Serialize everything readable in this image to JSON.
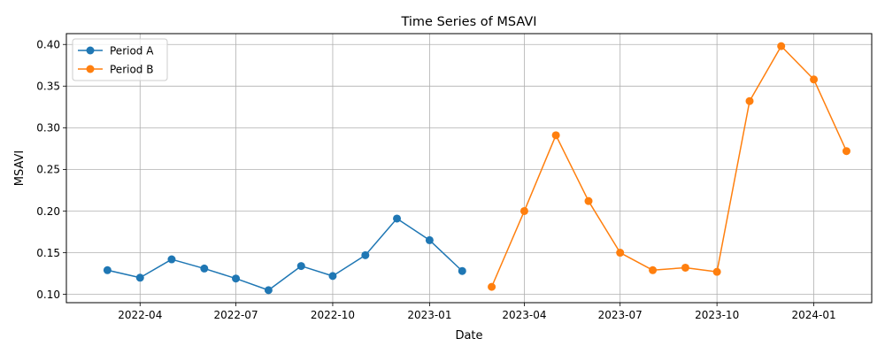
{
  "chart_data": {
    "type": "line",
    "title": "Time Series of MSAVI",
    "xlabel": "Date",
    "ylabel": "MSAVI",
    "grid": true,
    "legend_position": "top-left",
    "xlim": [
      "2022-01-21",
      "2024-02-25"
    ],
    "ylim": [
      0.09,
      0.413
    ],
    "x_ticks": [
      {
        "date": "2022-04-01",
        "label": "2022-04"
      },
      {
        "date": "2022-07-01",
        "label": "2022-07"
      },
      {
        "date": "2022-10-01",
        "label": "2022-10"
      },
      {
        "date": "2023-01-01",
        "label": "2023-01"
      },
      {
        "date": "2023-04-01",
        "label": "2023-04"
      },
      {
        "date": "2023-07-01",
        "label": "2023-07"
      },
      {
        "date": "2023-10-01",
        "label": "2023-10"
      },
      {
        "date": "2024-01-01",
        "label": "2024-01"
      }
    ],
    "y_ticks": [
      {
        "value": 0.1,
        "label": "0.10"
      },
      {
        "value": 0.15,
        "label": "0.15"
      },
      {
        "value": 0.2,
        "label": "0.20"
      },
      {
        "value": 0.25,
        "label": "0.25"
      },
      {
        "value": 0.3,
        "label": "0.30"
      },
      {
        "value": 0.35,
        "label": "0.35"
      },
      {
        "value": 0.4,
        "label": "0.40"
      }
    ],
    "series": [
      {
        "name": "Period A",
        "color": "#1f77b4",
        "x": [
          "2022-03-01",
          "2022-04-01",
          "2022-05-01",
          "2022-06-01",
          "2022-07-01",
          "2022-08-01",
          "2022-09-01",
          "2022-10-01",
          "2022-11-01",
          "2022-12-01",
          "2023-01-01",
          "2023-02-01"
        ],
        "y": [
          0.129,
          0.12,
          0.142,
          0.131,
          0.119,
          0.105,
          0.134,
          0.122,
          0.147,
          0.191,
          0.165,
          0.128
        ]
      },
      {
        "name": "Period B",
        "color": "#ff7f0e",
        "x": [
          "2023-03-01",
          "2023-04-01",
          "2023-05-01",
          "2023-06-01",
          "2023-07-01",
          "2023-08-01",
          "2023-09-01",
          "2023-10-01",
          "2023-11-01",
          "2023-12-01",
          "2024-01-01",
          "2024-02-01"
        ],
        "y": [
          0.109,
          0.2,
          0.291,
          0.212,
          0.15,
          0.129,
          0.132,
          0.127,
          0.332,
          0.398,
          0.358,
          0.272
        ]
      }
    ]
  }
}
